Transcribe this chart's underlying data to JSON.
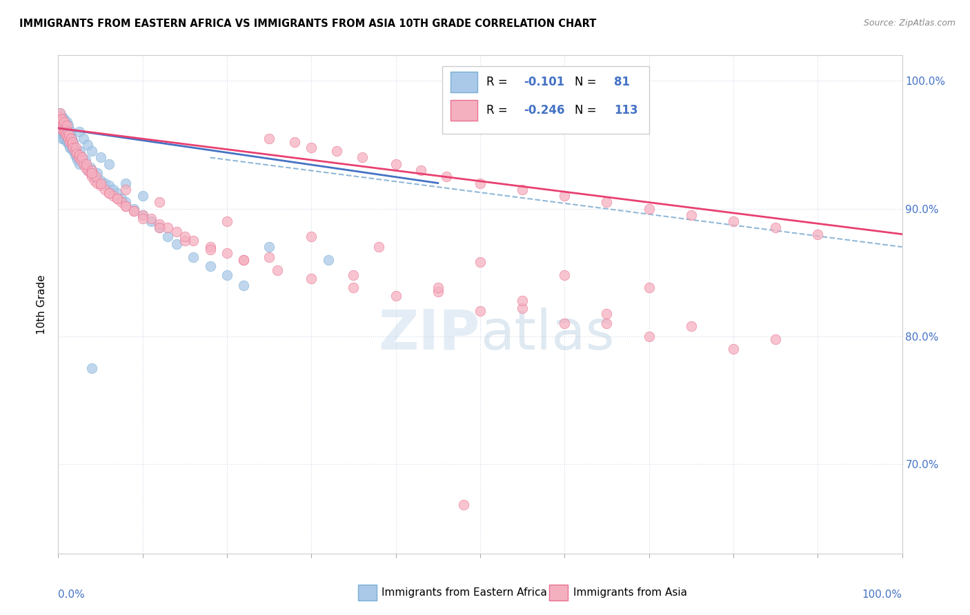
{
  "title": "IMMIGRANTS FROM EASTERN AFRICA VS IMMIGRANTS FROM ASIA 10TH GRADE CORRELATION CHART",
  "source": "Source: ZipAtlas.com",
  "ylabel": "10th Grade",
  "ytick_labels": [
    "70.0%",
    "80.0%",
    "90.0%",
    "100.0%"
  ],
  "ytick_values": [
    0.7,
    0.8,
    0.9,
    1.0
  ],
  "legend_r": [
    -0.101,
    -0.246
  ],
  "legend_n": [
    81,
    113
  ],
  "blue_color": "#aac9e8",
  "pink_color": "#f5b0c0",
  "blue_edge": "#7aafd4",
  "pink_edge": "#e87090",
  "blue_line_color": "#4472c4",
  "pink_line_color": "#e84070",
  "dashed_line_color": "#90b8d8",
  "blue_scatter_x": [
    0.001,
    0.002,
    0.002,
    0.003,
    0.003,
    0.003,
    0.004,
    0.004,
    0.005,
    0.005,
    0.005,
    0.006,
    0.006,
    0.007,
    0.007,
    0.007,
    0.008,
    0.008,
    0.009,
    0.009,
    0.01,
    0.01,
    0.01,
    0.011,
    0.011,
    0.012,
    0.012,
    0.013,
    0.013,
    0.014,
    0.014,
    0.015,
    0.015,
    0.016,
    0.016,
    0.017,
    0.018,
    0.018,
    0.019,
    0.02,
    0.021,
    0.022,
    0.023,
    0.025,
    0.026,
    0.028,
    0.03,
    0.032,
    0.035,
    0.038,
    0.04,
    0.043,
    0.046,
    0.05,
    0.055,
    0.06,
    0.065,
    0.07,
    0.075,
    0.08,
    0.09,
    0.1,
    0.11,
    0.12,
    0.13,
    0.14,
    0.16,
    0.18,
    0.2,
    0.22,
    0.025,
    0.03,
    0.035,
    0.04,
    0.05,
    0.06,
    0.08,
    0.1,
    0.25,
    0.32,
    0.04
  ],
  "blue_scatter_y": [
    0.97,
    0.975,
    0.965,
    0.972,
    0.968,
    0.96,
    0.968,
    0.958,
    0.972,
    0.965,
    0.955,
    0.968,
    0.96,
    0.97,
    0.963,
    0.955,
    0.965,
    0.958,
    0.963,
    0.955,
    0.968,
    0.96,
    0.952,
    0.96,
    0.953,
    0.965,
    0.957,
    0.958,
    0.95,
    0.955,
    0.948,
    0.96,
    0.952,
    0.955,
    0.947,
    0.95,
    0.952,
    0.945,
    0.948,
    0.942,
    0.945,
    0.94,
    0.938,
    0.935,
    0.945,
    0.94,
    0.935,
    0.938,
    0.93,
    0.932,
    0.93,
    0.925,
    0.928,
    0.922,
    0.92,
    0.918,
    0.915,
    0.912,
    0.908,
    0.905,
    0.9,
    0.895,
    0.89,
    0.885,
    0.878,
    0.872,
    0.862,
    0.855,
    0.848,
    0.84,
    0.96,
    0.955,
    0.95,
    0.945,
    0.94,
    0.935,
    0.92,
    0.91,
    0.87,
    0.86,
    0.775
  ],
  "pink_scatter_x": [
    0.001,
    0.002,
    0.002,
    0.003,
    0.003,
    0.004,
    0.005,
    0.005,
    0.006,
    0.007,
    0.007,
    0.008,
    0.009,
    0.01,
    0.01,
    0.011,
    0.012,
    0.013,
    0.014,
    0.015,
    0.016,
    0.017,
    0.018,
    0.02,
    0.021,
    0.022,
    0.024,
    0.025,
    0.027,
    0.03,
    0.032,
    0.035,
    0.038,
    0.04,
    0.043,
    0.046,
    0.05,
    0.055,
    0.06,
    0.065,
    0.07,
    0.075,
    0.08,
    0.09,
    0.1,
    0.11,
    0.12,
    0.13,
    0.14,
    0.16,
    0.18,
    0.2,
    0.22,
    0.25,
    0.28,
    0.3,
    0.33,
    0.36,
    0.4,
    0.43,
    0.46,
    0.5,
    0.55,
    0.6,
    0.65,
    0.7,
    0.75,
    0.8,
    0.85,
    0.9,
    0.028,
    0.033,
    0.04,
    0.045,
    0.05,
    0.06,
    0.07,
    0.08,
    0.09,
    0.1,
    0.12,
    0.15,
    0.18,
    0.22,
    0.26,
    0.3,
    0.35,
    0.4,
    0.5,
    0.6,
    0.7,
    0.8,
    0.15,
    0.25,
    0.35,
    0.45,
    0.55,
    0.65,
    0.04,
    0.08,
    0.12,
    0.2,
    0.3,
    0.38,
    0.5,
    0.6,
    0.7,
    0.45,
    0.55,
    0.65,
    0.75,
    0.85,
    0.48
  ],
  "pink_scatter_y": [
    0.972,
    0.975,
    0.968,
    0.97,
    0.963,
    0.965,
    0.97,
    0.962,
    0.965,
    0.968,
    0.96,
    0.962,
    0.958,
    0.965,
    0.957,
    0.96,
    0.955,
    0.958,
    0.952,
    0.955,
    0.95,
    0.952,
    0.948,
    0.945,
    0.948,
    0.943,
    0.94,
    0.942,
    0.938,
    0.935,
    0.932,
    0.93,
    0.928,
    0.925,
    0.922,
    0.92,
    0.918,
    0.915,
    0.912,
    0.91,
    0.908,
    0.905,
    0.902,
    0.898,
    0.895,
    0.892,
    0.888,
    0.885,
    0.882,
    0.875,
    0.87,
    0.865,
    0.86,
    0.955,
    0.952,
    0.948,
    0.945,
    0.94,
    0.935,
    0.93,
    0.925,
    0.92,
    0.915,
    0.91,
    0.905,
    0.9,
    0.895,
    0.89,
    0.885,
    0.88,
    0.94,
    0.935,
    0.93,
    0.925,
    0.92,
    0.912,
    0.908,
    0.902,
    0.898,
    0.892,
    0.885,
    0.875,
    0.868,
    0.86,
    0.852,
    0.845,
    0.838,
    0.832,
    0.82,
    0.81,
    0.8,
    0.79,
    0.878,
    0.862,
    0.848,
    0.835,
    0.822,
    0.81,
    0.928,
    0.915,
    0.905,
    0.89,
    0.878,
    0.87,
    0.858,
    0.848,
    0.838,
    0.838,
    0.828,
    0.818,
    0.808,
    0.798,
    0.668
  ],
  "blue_line_x0": 0.0,
  "blue_line_x1": 0.45,
  "blue_line_y0": 0.963,
  "blue_line_y1": 0.92,
  "pink_line_x0": 0.0,
  "pink_line_x1": 1.0,
  "pink_line_y0": 0.963,
  "pink_line_y1": 0.88,
  "dash_line_x0": 0.18,
  "dash_line_x1": 1.0,
  "dash_line_y0": 0.94,
  "dash_line_y1": 0.87,
  "xlim": [
    0.0,
    1.0
  ],
  "ylim": [
    0.63,
    1.02
  ],
  "figsize": [
    14.06,
    8.92
  ],
  "dpi": 100
}
